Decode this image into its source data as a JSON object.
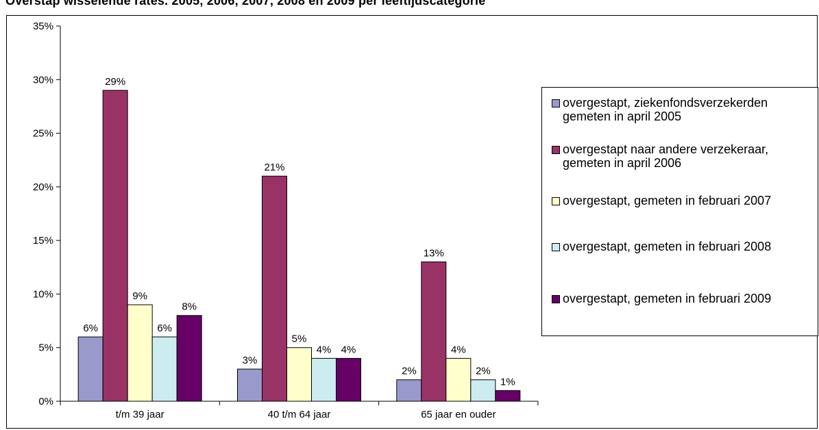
{
  "colors": {
    "series": [
      "#9999CC",
      "#993366",
      "#FFFFCC",
      "#CCECF0",
      "#660066"
    ]
  },
  "chart_data": {
    "type": "bar",
    "title": "Overstap wisselende rates. 2005, 2006, 2007, 2008 en 2009 per leeftijdscategorie",
    "categories": [
      "t/m 39 jaar",
      "40 t/m 64 jaar",
      "65 jaar en ouder"
    ],
    "series": [
      {
        "name": "overgestapt, ziekenfondsverzekerden gemeten in april 2005",
        "values": [
          6,
          3,
          2
        ],
        "labels": [
          "6%",
          "3%",
          "2%"
        ]
      },
      {
        "name": "overgestapt naar andere verzekeraar, gemeten in april 2006",
        "values": [
          29,
          21,
          13
        ],
        "labels": [
          "29%",
          "21%",
          "13%"
        ]
      },
      {
        "name": "overgestapt, gemeten in februari 2007",
        "values": [
          9,
          5,
          4
        ],
        "labels": [
          "9%",
          "5%",
          "4%"
        ]
      },
      {
        "name": "overgestapt, gemeten in februari 2008",
        "values": [
          6,
          4,
          2
        ],
        "labels": [
          "6%",
          "4%",
          "2%"
        ]
      },
      {
        "name": "overgestapt, gemeten in februari 2009",
        "values": [
          8,
          4,
          1
        ],
        "labels": [
          "8%",
          "4%",
          "1%"
        ]
      }
    ],
    "ylim": [
      0,
      35
    ],
    "yticks": [
      "0%",
      "5%",
      "10%",
      "15%",
      "20%",
      "25%",
      "30%",
      "35%"
    ],
    "ytick_values": [
      0,
      5,
      10,
      15,
      20,
      25,
      30,
      35
    ],
    "xlabel": "",
    "ylabel": "",
    "grid": false,
    "legend_position": "right"
  }
}
